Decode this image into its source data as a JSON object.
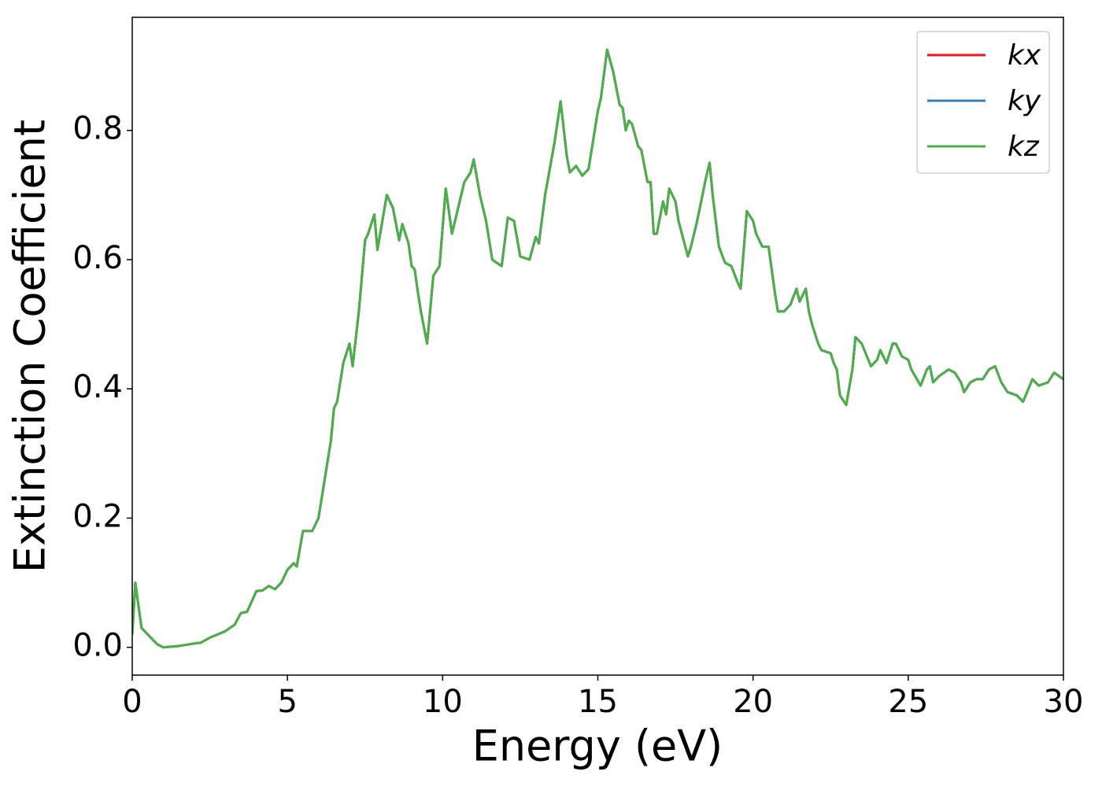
{
  "chart_data": {
    "type": "line",
    "xlabel": "Energy (eV)",
    "ylabel": "Extinction Coefficient",
    "x": [
      0,
      0.1,
      0.3,
      0.5,
      0.8,
      1.0,
      1.5,
      2.0,
      2.2,
      2.5,
      3.0,
      3.3,
      3.5,
      3.7,
      4.0,
      4.2,
      4.4,
      4.6,
      4.8,
      5.0,
      5.2,
      5.3,
      5.5,
      5.8,
      6.0,
      6.2,
      6.4,
      6.5,
      6.6,
      6.8,
      7.0,
      7.1,
      7.3,
      7.5,
      7.6,
      7.8,
      7.9,
      8.2,
      8.4,
      8.6,
      8.7,
      8.9,
      9.0,
      9.1,
      9.2,
      9.3,
      9.5,
      9.7,
      9.9,
      10.1,
      10.3,
      10.5,
      10.7,
      10.9,
      11.0,
      11.2,
      11.4,
      11.6,
      11.9,
      12.1,
      12.3,
      12.5,
      12.8,
      13.0,
      13.1,
      13.3,
      13.6,
      13.8,
      14.0,
      14.1,
      14.3,
      14.5,
      14.7,
      15.0,
      15.1,
      15.3,
      15.5,
      15.7,
      15.8,
      15.9,
      16.0,
      16.1,
      16.3,
      16.4,
      16.6,
      16.7,
      16.8,
      16.9,
      17.1,
      17.2,
      17.3,
      17.5,
      17.6,
      17.9,
      18.0,
      18.2,
      18.5,
      18.6,
      18.7,
      18.9,
      19.1,
      19.3,
      19.5,
      19.6,
      19.8,
      20.0,
      20.1,
      20.3,
      20.5,
      20.7,
      20.8,
      21.0,
      21.2,
      21.4,
      21.5,
      21.7,
      21.8,
      21.9,
      22.1,
      22.2,
      22.5,
      22.6,
      22.7,
      22.8,
      23.0,
      23.2,
      23.3,
      23.5,
      23.8,
      24.0,
      24.1,
      24.3,
      24.5,
      24.6,
      24.8,
      25.0,
      25.1,
      25.4,
      25.6,
      25.7,
      25.8,
      26.0,
      26.3,
      26.5,
      26.7,
      26.8,
      27.0,
      27.2,
      27.4,
      27.6,
      27.8,
      28.0,
      28.2,
      28.5,
      28.7,
      29.0,
      29.2,
      29.5,
      29.7,
      30.0
    ],
    "series": [
      {
        "name": "kx",
        "color": "#e41a1c",
        "values": [
          0.02,
          0.1,
          0.03,
          0.02,
          0.005,
          0.0,
          0.002,
          0.006,
          0.007,
          0.015,
          0.025,
          0.035,
          0.053,
          0.055,
          0.087,
          0.088,
          0.095,
          0.09,
          0.1,
          0.12,
          0.13,
          0.125,
          0.18,
          0.18,
          0.2,
          0.26,
          0.32,
          0.37,
          0.38,
          0.44,
          0.47,
          0.435,
          0.52,
          0.63,
          0.64,
          0.67,
          0.615,
          0.7,
          0.68,
          0.63,
          0.655,
          0.625,
          0.59,
          0.585,
          0.55,
          0.52,
          0.47,
          0.575,
          0.59,
          0.71,
          0.64,
          0.68,
          0.72,
          0.735,
          0.755,
          0.7,
          0.66,
          0.6,
          0.59,
          0.665,
          0.66,
          0.605,
          0.6,
          0.635,
          0.625,
          0.7,
          0.78,
          0.845,
          0.76,
          0.735,
          0.745,
          0.73,
          0.74,
          0.83,
          0.85,
          0.925,
          0.89,
          0.84,
          0.835,
          0.8,
          0.815,
          0.81,
          0.775,
          0.77,
          0.72,
          0.72,
          0.64,
          0.64,
          0.69,
          0.67,
          0.71,
          0.69,
          0.66,
          0.605,
          0.62,
          0.66,
          0.73,
          0.75,
          0.7,
          0.62,
          0.595,
          0.59,
          0.565,
          0.555,
          0.675,
          0.66,
          0.64,
          0.62,
          0.62,
          0.55,
          0.52,
          0.52,
          0.53,
          0.555,
          0.535,
          0.555,
          0.52,
          0.5,
          0.47,
          0.46,
          0.455,
          0.44,
          0.43,
          0.39,
          0.375,
          0.43,
          0.48,
          0.47,
          0.435,
          0.445,
          0.46,
          0.44,
          0.47,
          0.47,
          0.45,
          0.445,
          0.43,
          0.405,
          0.43,
          0.435,
          0.41,
          0.42,
          0.43,
          0.425,
          0.41,
          0.395,
          0.41,
          0.415,
          0.415,
          0.43,
          0.435,
          0.41,
          0.395,
          0.39,
          0.38,
          0.415,
          0.405,
          0.41,
          0.425,
          0.415
        ]
      },
      {
        "name": "ky",
        "color": "#377eb8",
        "values": [
          0.02,
          0.1,
          0.03,
          0.02,
          0.005,
          0.0,
          0.002,
          0.006,
          0.007,
          0.015,
          0.025,
          0.035,
          0.053,
          0.055,
          0.087,
          0.088,
          0.095,
          0.09,
          0.1,
          0.12,
          0.13,
          0.125,
          0.18,
          0.18,
          0.2,
          0.26,
          0.32,
          0.37,
          0.38,
          0.44,
          0.47,
          0.435,
          0.52,
          0.63,
          0.64,
          0.67,
          0.615,
          0.7,
          0.68,
          0.63,
          0.655,
          0.625,
          0.59,
          0.585,
          0.55,
          0.52,
          0.47,
          0.575,
          0.59,
          0.71,
          0.64,
          0.68,
          0.72,
          0.735,
          0.755,
          0.7,
          0.66,
          0.6,
          0.59,
          0.665,
          0.66,
          0.605,
          0.6,
          0.635,
          0.625,
          0.7,
          0.78,
          0.845,
          0.76,
          0.735,
          0.745,
          0.73,
          0.74,
          0.83,
          0.85,
          0.925,
          0.89,
          0.84,
          0.835,
          0.8,
          0.815,
          0.81,
          0.775,
          0.77,
          0.72,
          0.72,
          0.64,
          0.64,
          0.69,
          0.67,
          0.71,
          0.69,
          0.66,
          0.605,
          0.62,
          0.66,
          0.73,
          0.75,
          0.7,
          0.62,
          0.595,
          0.59,
          0.565,
          0.555,
          0.675,
          0.66,
          0.64,
          0.62,
          0.62,
          0.55,
          0.52,
          0.52,
          0.53,
          0.555,
          0.535,
          0.555,
          0.52,
          0.5,
          0.47,
          0.46,
          0.455,
          0.44,
          0.43,
          0.39,
          0.375,
          0.43,
          0.48,
          0.47,
          0.435,
          0.445,
          0.46,
          0.44,
          0.47,
          0.47,
          0.45,
          0.445,
          0.43,
          0.405,
          0.43,
          0.435,
          0.41,
          0.42,
          0.43,
          0.425,
          0.41,
          0.395,
          0.41,
          0.415,
          0.415,
          0.43,
          0.435,
          0.41,
          0.395,
          0.39,
          0.38,
          0.415,
          0.405,
          0.41,
          0.425,
          0.415
        ]
      },
      {
        "name": "kz",
        "color": "#4daf4a",
        "values": [
          0.02,
          0.1,
          0.03,
          0.02,
          0.005,
          0.0,
          0.002,
          0.006,
          0.007,
          0.015,
          0.025,
          0.035,
          0.053,
          0.055,
          0.087,
          0.088,
          0.095,
          0.09,
          0.1,
          0.12,
          0.13,
          0.125,
          0.18,
          0.18,
          0.2,
          0.26,
          0.32,
          0.37,
          0.38,
          0.44,
          0.47,
          0.435,
          0.52,
          0.63,
          0.64,
          0.67,
          0.615,
          0.7,
          0.68,
          0.63,
          0.655,
          0.625,
          0.59,
          0.585,
          0.55,
          0.52,
          0.47,
          0.575,
          0.59,
          0.71,
          0.64,
          0.68,
          0.72,
          0.735,
          0.755,
          0.7,
          0.66,
          0.6,
          0.59,
          0.665,
          0.66,
          0.605,
          0.6,
          0.635,
          0.625,
          0.7,
          0.78,
          0.845,
          0.76,
          0.735,
          0.745,
          0.73,
          0.74,
          0.83,
          0.85,
          0.925,
          0.89,
          0.84,
          0.835,
          0.8,
          0.815,
          0.81,
          0.775,
          0.77,
          0.72,
          0.72,
          0.64,
          0.64,
          0.69,
          0.67,
          0.71,
          0.69,
          0.66,
          0.605,
          0.62,
          0.66,
          0.73,
          0.75,
          0.7,
          0.62,
          0.595,
          0.59,
          0.565,
          0.555,
          0.675,
          0.66,
          0.64,
          0.62,
          0.62,
          0.55,
          0.52,
          0.52,
          0.53,
          0.555,
          0.535,
          0.555,
          0.52,
          0.5,
          0.47,
          0.46,
          0.455,
          0.44,
          0.43,
          0.39,
          0.375,
          0.43,
          0.48,
          0.47,
          0.435,
          0.445,
          0.46,
          0.44,
          0.47,
          0.47,
          0.45,
          0.445,
          0.43,
          0.405,
          0.43,
          0.435,
          0.41,
          0.42,
          0.43,
          0.425,
          0.41,
          0.395,
          0.41,
          0.415,
          0.415,
          0.43,
          0.435,
          0.41,
          0.395,
          0.39,
          0.38,
          0.415,
          0.405,
          0.41,
          0.425,
          0.415
        ]
      }
    ],
    "xlim": [
      0,
      30
    ],
    "xticks": [
      0,
      5,
      10,
      15,
      20,
      25,
      30
    ],
    "ylim": [
      -0.043,
      0.975
    ],
    "yticks": [
      {
        "value": 0,
        "label": "0.0"
      },
      0.2,
      0.4,
      0.6,
      0.8
    ],
    "grid": false,
    "legend": "upper right"
  }
}
